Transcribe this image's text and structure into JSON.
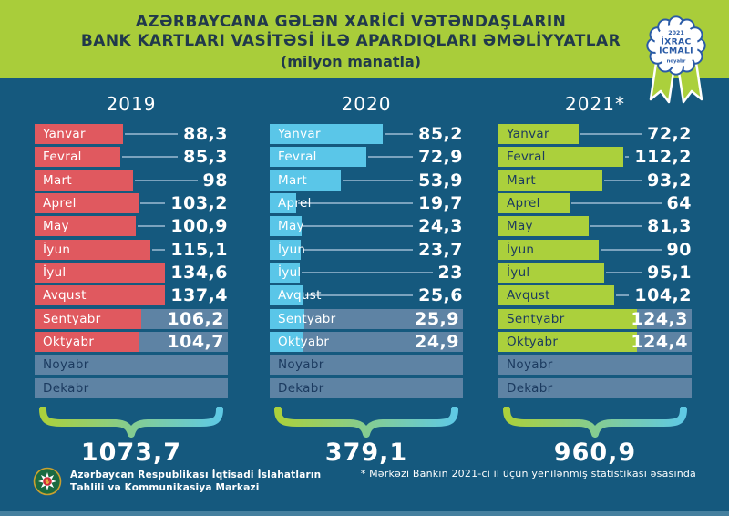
{
  "title": {
    "line1": "AZƏRBAYCANA GƏLƏN XARİCİ VƏTƏNDAŞLARIN",
    "line2": "BANK KARTLARI VASİTƏSİ İLƏ APARDIQLARI ƏMƏLİYYATLAR",
    "line3": "(milyon manatla)"
  },
  "badge": {
    "year": "2021",
    "line1": "İXRAC",
    "line2": "İCMALI",
    "month": "noyabr"
  },
  "footnote": "* Mərkəzi Bankın 2021-ci il üçün yenilənmiş statistikası əsasında",
  "source": {
    "line1": "Azərbaycan Respublikası İqtisadi İslahatların",
    "line2": "Təhlili və Kommunikasiya Mərkəzi"
  },
  "colors": {
    "headerGreen": "#a9cd3a",
    "bodyBlue": "#15597e",
    "barRed": "#e0595f",
    "barCyan": "#5ac6e8",
    "barGreen": "#abd03c",
    "trackSlate": "#5e83a4",
    "badgeBlue": "#2a5ba6",
    "navyText": "#1b3a5f",
    "braceCyan": "#5fc9e4"
  },
  "chart_data": {
    "type": "bar",
    "orientation": "horizontal",
    "title": "AZƏRBAYCANA GƏLƏN XARİCİ VƏTƏNDAŞLARIN BANK KARTLARI VASİTƏSİ İLƏ APARDIQLARI ƏMƏLİYYATLAR",
    "unit": "milyon manatla",
    "categories": [
      "Yanvar",
      "Fevral",
      "Mart",
      "Aprel",
      "May",
      "İyun",
      "İyul",
      "Avqust",
      "Sentyabr",
      "Oktyabr",
      "Noyabr",
      "Dekabr"
    ],
    "series": [
      {
        "name": "2019",
        "color": "#e0595f",
        "values": [
          88.3,
          85.3,
          98,
          103.2,
          100.9,
          115.1,
          134.6,
          137.4,
          106.2,
          104.7,
          null,
          null
        ],
        "labels": [
          "88,3",
          "85,3",
          "98",
          "103,2",
          "100,9",
          "115,1",
          "134,6",
          "137,4",
          "106,2",
          "104,7",
          "",
          ""
        ],
        "total": 1073.7,
        "total_label": "1073,7"
      },
      {
        "name": "2020",
        "color": "#5ac6e8",
        "values": [
          85.2,
          72.9,
          53.9,
          19.7,
          24.3,
          23.7,
          23,
          25.6,
          25.9,
          24.9,
          null,
          null
        ],
        "labels": [
          "85,2",
          "72,9",
          "53,9",
          "19,7",
          "24,3",
          "23,7",
          "23",
          "25,6",
          "25,9",
          "24,9",
          "",
          ""
        ],
        "total": 379.1,
        "total_label": "379,1"
      },
      {
        "name": "2021*",
        "color": "#abd03c",
        "values": [
          72.2,
          112.2,
          93.2,
          64,
          81.3,
          90,
          95.1,
          104.2,
          124.3,
          124.4,
          null,
          null
        ],
        "labels": [
          "72,2",
          "112,2",
          "93,2",
          "64",
          "81,3",
          "90",
          "95,1",
          "104,2",
          "124,3",
          "124,4",
          "",
          ""
        ],
        "total": 960.9,
        "total_label": "960,9"
      }
    ],
    "legend_position": "none",
    "grid": false
  }
}
